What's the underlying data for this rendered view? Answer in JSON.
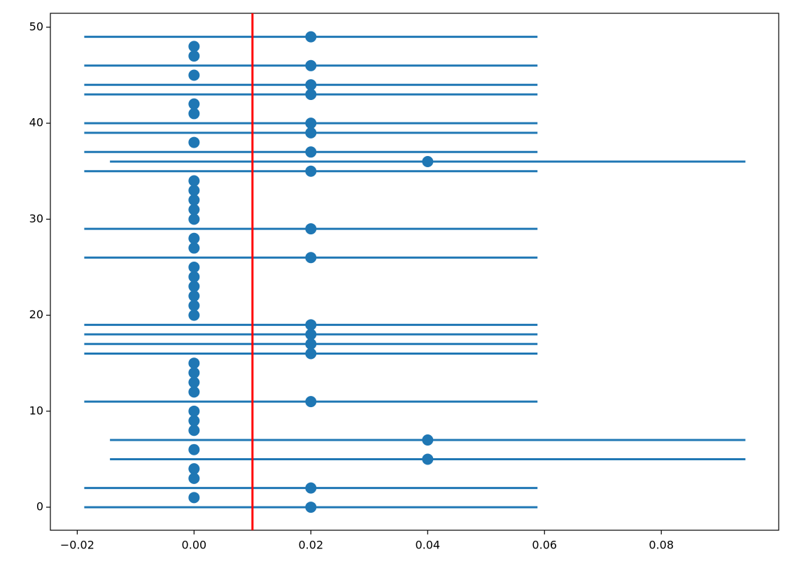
{
  "chart_data": {
    "type": "errorbar",
    "series": [
      {
        "color": "#1f77b4",
        "x": [
          0.02,
          0,
          0.02,
          0,
          0,
          0.04,
          0,
          0.04,
          0,
          0,
          0,
          0.02,
          0,
          0,
          0,
          0,
          0.02,
          0.02,
          0.02,
          0.02,
          0,
          0,
          0,
          0,
          0,
          0,
          0.02,
          0,
          0,
          0.02,
          0,
          0,
          0,
          0,
          0,
          0.02,
          0.04,
          0.02,
          0,
          0.02,
          0.02,
          0,
          0,
          0.02,
          0.02,
          0,
          0.02,
          0,
          0,
          0.02
        ],
        "y": [
          0,
          1,
          2,
          3,
          4,
          5,
          6,
          7,
          8,
          9,
          10,
          11,
          12,
          13,
          14,
          15,
          16,
          17,
          18,
          19,
          20,
          21,
          22,
          23,
          24,
          25,
          26,
          27,
          28,
          29,
          30,
          31,
          32,
          33,
          34,
          35,
          36,
          37,
          38,
          39,
          40,
          41,
          42,
          43,
          44,
          45,
          46,
          47,
          48,
          49
        ],
        "xerr": [
          0.0388,
          0,
          0.0388,
          0,
          0,
          0.0544,
          0,
          0.0544,
          0,
          0,
          0,
          0.0388,
          0,
          0,
          0,
          0,
          0.0388,
          0.0388,
          0.0388,
          0.0388,
          0,
          0,
          0,
          0,
          0,
          0,
          0.0388,
          0,
          0,
          0.0388,
          0,
          0,
          0,
          0,
          0,
          0.0388,
          0.0544,
          0.0388,
          0,
          0.0388,
          0.0388,
          0,
          0,
          0.0388,
          0.0388,
          0,
          0.0388,
          0,
          0,
          0.0388
        ]
      }
    ],
    "vline": {
      "x": 0.01,
      "color": "#ff0000"
    },
    "xlim": [
      -0.0246,
      0.1001
    ],
    "ylim": [
      -2.4,
      51.45
    ],
    "xticks": [
      {
        "value": -0.02,
        "label": "−0.02"
      },
      {
        "value": 0,
        "label": "0.00"
      },
      {
        "value": 0.02,
        "label": "0.02"
      },
      {
        "value": 0.04,
        "label": "0.04"
      },
      {
        "value": 0.06,
        "label": "0.06"
      },
      {
        "value": 0.08,
        "label": "0.08"
      }
    ],
    "yticks": [
      0,
      10,
      20,
      30,
      40,
      50
    ]
  }
}
